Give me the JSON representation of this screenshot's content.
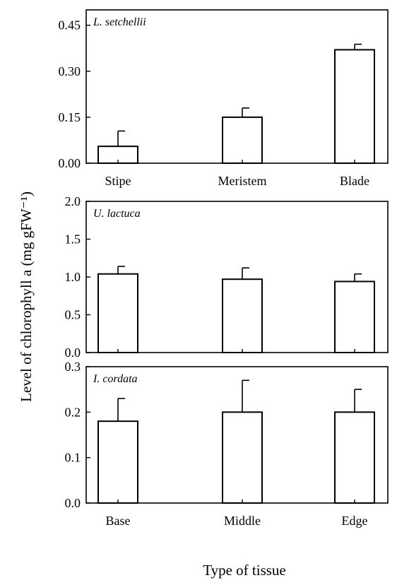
{
  "ylabel": "Level of chlorophyll a (mg gFW⁻¹)",
  "xlabel": "Type of tissue",
  "chart_data": [
    {
      "type": "bar",
      "title": "L. setchellii",
      "categories": [
        "Stipe",
        "Meristem",
        "Blade"
      ],
      "values": [
        0.055,
        0.15,
        0.37
      ],
      "errors": [
        0.05,
        0.03,
        0.018
      ],
      "ylim": [
        0,
        0.5
      ],
      "yticks": [
        0.0,
        0.15,
        0.3,
        0.45
      ],
      "ytick_labels": [
        "0.00",
        "0.15",
        "0.30",
        "0.45"
      ],
      "xtick_labels_shown": true
    },
    {
      "type": "bar",
      "title": "U. lactuca",
      "categories": [
        "Base",
        "Middle",
        "Edge"
      ],
      "values": [
        1.04,
        0.97,
        0.94
      ],
      "errors": [
        0.1,
        0.15,
        0.1
      ],
      "ylim": [
        0,
        2.0
      ],
      "yticks": [
        0.0,
        0.5,
        1.0,
        1.5,
        2.0
      ],
      "ytick_labels": [
        "0.0",
        "0.5",
        "1.0",
        "1.5",
        "2.0"
      ],
      "xtick_labels_shown": false
    },
    {
      "type": "bar",
      "title": "I. cordata",
      "categories": [
        "Base",
        "Middle",
        "Edge"
      ],
      "values": [
        0.18,
        0.2,
        0.2
      ],
      "errors": [
        0.05,
        0.07,
        0.05
      ],
      "ylim": [
        0,
        0.3
      ],
      "yticks": [
        0.0,
        0.1,
        0.2,
        0.3
      ],
      "ytick_labels": [
        "0.0",
        "0.1",
        "0.2",
        "0.3"
      ],
      "xtick_labels_shown": true
    }
  ]
}
